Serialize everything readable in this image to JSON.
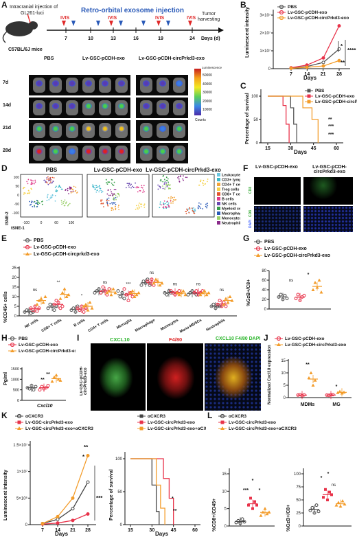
{
  "panelA": {
    "letter": "A",
    "injection": "Intracranial injection of",
    "luci": "GL261-luci",
    "mice": "C57BL/6J mice",
    "retro": "Retro-orbital exosome injection",
    "ivis": "IVIS",
    "tumor1": "Tumor",
    "tumor2": "harvesting",
    "days_axis": "Days (d)",
    "ticks": [
      "7",
      "10",
      "13",
      "16",
      "19",
      "24"
    ],
    "groups": [
      "PBS",
      "Lv-GSC-pCDH-exo",
      "Lv-GSC-pCDH-circPrkd3-exo"
    ],
    "rows": [
      "7d",
      "14d",
      "21d",
      "28d"
    ],
    "scale_title": "Luminescence",
    "scale_ticks": [
      "50000",
      "40000",
      "30000",
      "20000",
      "10000"
    ],
    "scale_counts": "Counts"
  },
  "panelB": {
    "letter": "B",
    "legend": [
      "PBS",
      "Lv-GSC-pCDH-exo",
      "Lv-GSC-pCDH-circPrkd3-exo"
    ],
    "ylabel": "Luminescent intensity",
    "xlabel": "Days",
    "yticks": [
      "0",
      "1×10⁷",
      "2×10⁷",
      "3×10⁷"
    ],
    "xticks": [
      "7",
      "14",
      "21",
      "28"
    ],
    "sig": [
      "*",
      "****",
      "**"
    ]
  },
  "panelC": {
    "letter": "C",
    "legend": [
      "PBS",
      "Lv-GSC-pCDH-exo",
      "Lv-GSC-pCDH-circPrkd3-exo"
    ],
    "ylabel": "Percentage of survival",
    "xlabel": "Days",
    "yticks": [
      "0",
      "50",
      "100"
    ],
    "xticks": [
      "15",
      "30",
      "45",
      "60"
    ],
    "sig": [
      "**",
      "***",
      "***"
    ]
  },
  "panelD": {
    "letter": "D",
    "titles": [
      "PBS",
      "Lv-GSC-pCDH-exo",
      "Lv-GSC-pCDH-circPrkd3-exo"
    ],
    "legend": [
      "Leukocytes",
      "CD3+ lymphocytes",
      "CD4+ T cells",
      "Treg cells",
      "CD8+ T cell",
      "B cells",
      "NK cells",
      "Myeloid cells",
      "Macrophages",
      "Monocytes",
      "Neutrophils"
    ],
    "ylabel": "tSNE-2",
    "xlabel": "tSNE-1",
    "yticks": [
      "100",
      "50",
      "0",
      "-50",
      "-100"
    ],
    "xticks": [
      "-100",
      "0",
      "60",
      "100"
    ]
  },
  "panelE": {
    "letter": "E",
    "legend": [
      "PBS",
      "Lv-GSC-pCDH-exo",
      "Lv-GSC-pCDH-circprkd3-exo"
    ],
    "ylabel": "%CD45+ cells",
    "categories": [
      "NK cells",
      "CD8+ T cells",
      "B cells",
      "CD4+ T cells",
      "Microglia",
      "Macrophage",
      "Monocytes",
      "Mono-MDSCs",
      "Neutrophils"
    ],
    "yticks": [
      "0",
      "5",
      "10",
      "15",
      "20",
      "25"
    ],
    "sig": [
      "ns",
      "**",
      "*",
      "ns",
      "***",
      "ns",
      "ns",
      "ns",
      "ns"
    ]
  },
  "panelF": {
    "letter": "F",
    "titles": [
      "Lv-GSC-pCDH-exo",
      "Lv-GSC-pCDH-circPrkd3-exo"
    ],
    "side1": "CD8",
    "side2a": "CD8",
    "side2b": "DAPI"
  },
  "panelG": {
    "letter": "G",
    "legend": [
      "PBS",
      "Lv-GSC-pCDH-exo",
      "Lv-GSC-pCDH-circPrkd3-exo"
    ],
    "ylabel": "%GzB+/C8+",
    "yticks": [
      "0",
      "20",
      "40",
      "60",
      "80"
    ],
    "sig": [
      "ns",
      "*",
      "ns"
    ]
  },
  "panelH": {
    "letter": "H",
    "legend": [
      "PBS",
      "Lv-GSC-pCDH-exo",
      "Lv-GSC-pCDH-circPrkd3-exo"
    ],
    "ylabel": "Pg/ml",
    "xlabel": "Cxcl10",
    "yticks": [
      "0",
      "500",
      "1000",
      "1500"
    ],
    "sig": [
      "**",
      "**"
    ]
  },
  "panelI": {
    "letter": "I",
    "side": "Lv-GSC-pCDH-circPrkd3-exo",
    "titles": [
      "CXCL10",
      "F4/80",
      "CXCL10 F4/80 DAPI"
    ]
  },
  "panelJ": {
    "letter": "J",
    "legend": [
      "Lv-GSC-pCDH-exo",
      "Lv-GSC-pCDH-circPrkd3-exo"
    ],
    "ylabel": "Normalized Cxcl10 expression",
    "categories": [
      "MDMs",
      "MG"
    ],
    "yticks": [
      "0",
      "5",
      "10",
      "15"
    ],
    "sig": [
      "**",
      "*"
    ]
  },
  "panelK": {
    "letter": "K",
    "legend": [
      "αCXCR3",
      "Lv-GSC-circPrkd3-exo",
      "Lv-GSC-circPrkd3-exo+αCXCR3"
    ],
    "ylabel": "Luminescent intensity",
    "xlabel": "Days",
    "yticks": [
      "0",
      "5×10⁶",
      "1×10⁷",
      "1.5×10⁷"
    ],
    "xticks": [
      "7",
      "14",
      "21",
      "28"
    ],
    "sig": [
      "*",
      "**",
      "***"
    ],
    "legend2": [
      "αCXCR3",
      "Lv-GSC-circPrkd3-exo",
      "Lv-GSC-circPrkd3-exo+αCXCR3"
    ],
    "ylabel2": "Percentage of survival",
    "xlabel2": "Days",
    "yticks2": [
      "0",
      "50",
      "100"
    ],
    "xticks2": [
      "15",
      "30",
      "45",
      "60"
    ],
    "sig2": [
      "*",
      "**"
    ]
  },
  "panelL": {
    "letter": "L",
    "legend": [
      "αCXCR3",
      "Lv-GSC-circPrkd3-exo",
      "Lv-GSC-circPrkd3-exo+αCXCR3"
    ],
    "ylabel": "%CD8+/CD45+",
    "yticks": [
      "0",
      "5",
      "10",
      "15"
    ],
    "sig": [
      "***",
      "*",
      "*"
    ],
    "ylabel2": "%GzB+/C8+",
    "yticks2": [
      "0",
      "25",
      "50",
      "75",
      "100"
    ],
    "sig2": [
      "*",
      "ns",
      "*"
    ]
  },
  "colors": {
    "pbs": "#555555",
    "exo": "#e8334a",
    "circ": "#f39c2a",
    "cx": "#444444"
  }
}
